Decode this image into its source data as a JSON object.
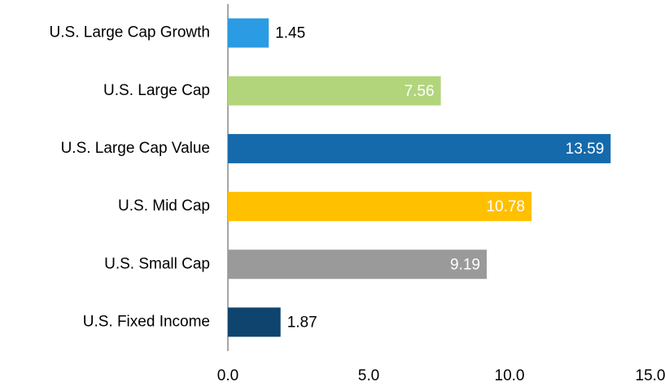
{
  "chart_data": {
    "type": "hbar",
    "categories": [
      "U.S. Large Cap Growth",
      "U.S. Large Cap",
      "U.S. Large Cap Value",
      "U.S. Mid Cap",
      "U.S. Small Cap",
      "U.S. Fixed Income"
    ],
    "values": [
      1.45,
      7.56,
      13.59,
      10.78,
      9.19,
      1.87
    ],
    "colors": [
      "#2b9be3",
      "#b2d57c",
      "#156aab",
      "#ffc000",
      "#9a9a9a",
      "#0f446e"
    ],
    "xlim": [
      0,
      15
    ],
    "xticks": [
      {
        "value": 0,
        "label": "0.0"
      },
      {
        "value": 5,
        "label": "5.0"
      },
      {
        "value": 10,
        "label": "10.0"
      },
      {
        "value": 15,
        "label": "15.0"
      }
    ],
    "grid": false
  }
}
